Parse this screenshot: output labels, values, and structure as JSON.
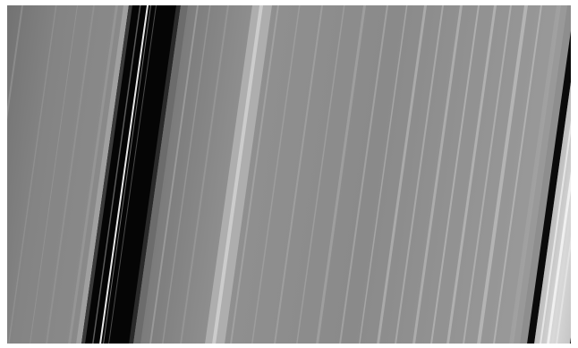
{
  "image": {
    "subject": "planetary-ring-bands",
    "palette": {
      "dark_gap": "#050505",
      "outer_band": "#858585",
      "inner_band": "#8d8d8d",
      "bright_band": "#d4d4d4",
      "ringlet": "#f2f2f2"
    }
  }
}
